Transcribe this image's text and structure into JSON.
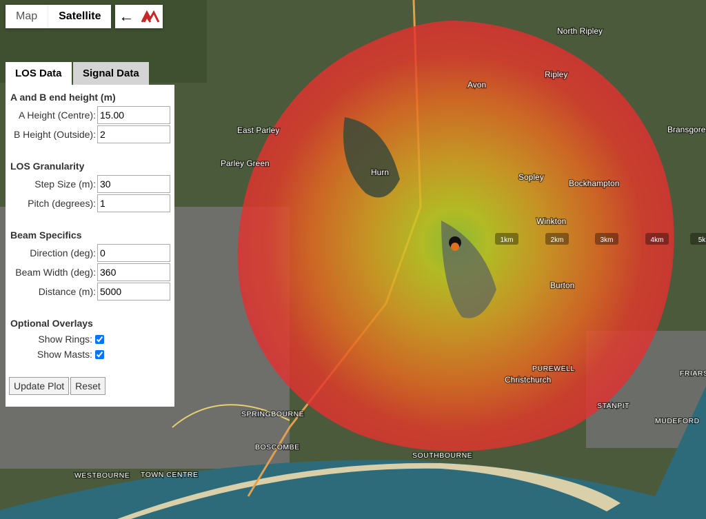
{
  "map_toggle": [
    "Map",
    "Satellite"
  ],
  "tabs": [
    "LOS Data",
    "Signal Data"
  ],
  "sections": [
    {
      "title": "A and B end height (m)",
      "fields": [
        {
          "label": "A Height (Centre):",
          "value": "15.00"
        },
        {
          "label": "B Height (Outside):",
          "value": "2"
        }
      ]
    },
    {
      "title": "LOS Granularity",
      "fields": [
        {
          "label": "Step Size (m):",
          "value": "30"
        },
        {
          "label": "Pitch (degrees):",
          "value": "1"
        }
      ]
    },
    {
      "title": "Beam Specifics",
      "fields": [
        {
          "label": "Direction (deg):",
          "value": "0"
        },
        {
          "label": "Beam Width (deg):",
          "value": "360"
        },
        {
          "label": "Distance (m):",
          "value": "5000"
        }
      ]
    }
  ],
  "overlays": {
    "title": "Optional Overlays",
    "options": [
      {
        "label": "Show Rings:",
        "checked": true
      },
      {
        "label": "Show Masts:",
        "checked": true
      }
    ]
  },
  "buttons": [
    "Update Plot",
    "Reset"
  ],
  "rings": [
    "1km",
    "2km",
    "3km",
    "4km",
    "5k"
  ],
  "places": [
    "North Ripley",
    "Ripley",
    "Avon",
    "East Parley",
    "Bransgore",
    "Parley Green",
    "Hurn",
    "Sopley",
    "Bockhampton",
    "Winkton",
    "Burton",
    "Christchurch",
    "PUREWELL",
    "SPRINGBOURNE",
    "BOSCOMBE",
    "SOUTHBOURNE",
    "WESTBOURNE",
    "TOWN CENTRE",
    "STANPIT",
    "MUDEFORD",
    "FRIARS"
  ]
}
